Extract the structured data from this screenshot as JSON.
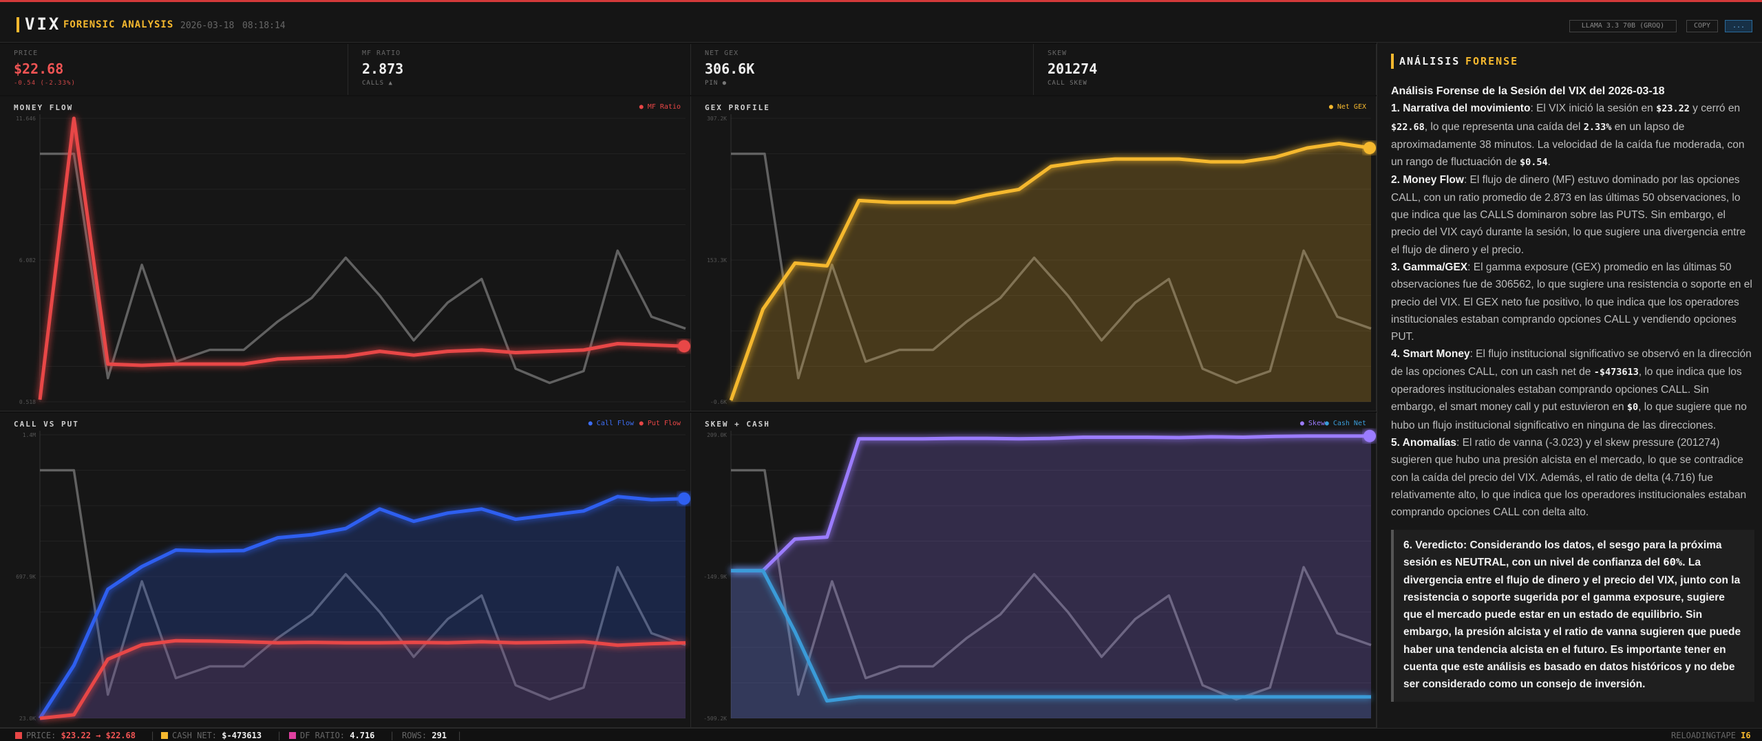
{
  "topbar": {
    "title": "VIX",
    "subtitle": "FORENSIC ANALYSIS",
    "date": "2026-03-18",
    "time": "08:18:14",
    "model_label": "LLAMA 3.3 70B (GROQ)",
    "copy_label": "COPY",
    "more_label": "...",
    "accent": "#d33a3a"
  },
  "stats": [
    {
      "label": "PRICE",
      "value": "$22.68",
      "sub": "-0.54 (-2.33%)"
    },
    {
      "label": "MF RATIO",
      "value": "2.873",
      "sub": "CALLS ▲"
    },
    {
      "label": "NET GEX",
      "value": "306.6K",
      "sub": "PIN ●"
    },
    {
      "label": "SKEW",
      "value": "201274",
      "sub": "CALL SKEW"
    }
  ],
  "panels": {
    "money_flow": {
      "title": "MONEY FLOW",
      "legend": [
        "● MF Ratio"
      ]
    },
    "gex_profile": {
      "title": "GEX PROFILE",
      "legend": [
        "● Net GEX"
      ]
    },
    "call_vs_put": {
      "title": "CALL VS PUT",
      "legend": [
        "● Call Flow",
        "● Put Flow"
      ]
    },
    "skew_cash": {
      "title": "SKEW + CASH",
      "legend": [
        "● Skew",
        "● Cash Net"
      ]
    }
  },
  "chart_data": [
    {
      "type": "line",
      "title": "MONEY FLOW",
      "y_ticks": [
        "11.646",
        "6.082",
        "0.518"
      ],
      "ylim": [
        0.518,
        11.646
      ],
      "series": [
        {
          "name": "MF Ratio",
          "color": "#e84646",
          "values": [
            0.6,
            11.646,
            2.0,
            1.95,
            2.0,
            2.0,
            2.0,
            2.2,
            2.25,
            2.3,
            2.5,
            2.35,
            2.5,
            2.55,
            2.45,
            2.5,
            2.55,
            2.8,
            2.75,
            2.7
          ]
        }
      ],
      "background_series": [
        10.5,
        10.5,
        1.0,
        5.8,
        1.7,
        2.2,
        2.2,
        3.4,
        4.4,
        6.1,
        4.5,
        2.6,
        4.2,
        5.2,
        1.4,
        0.8,
        1.3,
        6.4,
        3.6,
        3.1
      ]
    },
    {
      "type": "area",
      "title": "GEX PROFILE",
      "y_ticks": [
        "307.2K",
        "153.3K",
        "-0.6K"
      ],
      "ylim": [
        -0.6,
        307.2
      ],
      "series": [
        {
          "name": "Net GEX",
          "color": "#f5b82e",
          "values": [
            1,
            100,
            150,
            147,
            218,
            216,
            216,
            216,
            224,
            230,
            255,
            260,
            263,
            263,
            263,
            260,
            260,
            265,
            275,
            280,
            275
          ]
        }
      ],
      "background_series": [
        10.5,
        10.5,
        1.0,
        5.8,
        1.7,
        2.2,
        2.2,
        3.4,
        4.4,
        6.1,
        4.5,
        2.6,
        4.2,
        5.2,
        1.4,
        0.8,
        1.3,
        6.4,
        3.6,
        3.1
      ]
    },
    {
      "type": "area",
      "title": "CALL VS PUT",
      "y_ticks": [
        "1.4M",
        "697.9K",
        "23.0K"
      ],
      "ylim": [
        23.0,
        1400
      ],
      "series": [
        {
          "name": "Call Flow",
          "color": "#2e5ef0",
          "values": [
            23,
            280,
            650,
            760,
            840,
            835,
            838,
            900,
            915,
            945,
            1040,
            980,
            1020,
            1040,
            990,
            1010,
            1030,
            1100,
            1085,
            1090
          ]
        },
        {
          "name": "Put Flow",
          "color": "#e84646",
          "values": [
            23,
            40,
            310,
            380,
            400,
            398,
            395,
            390,
            392,
            390,
            390,
            392,
            390,
            395,
            390,
            392,
            395,
            378,
            385,
            390
          ]
        }
      ],
      "background_series": [
        10.5,
        10.5,
        1.0,
        5.8,
        1.7,
        2.2,
        2.2,
        3.4,
        4.4,
        6.1,
        4.5,
        2.6,
        4.2,
        5.2,
        1.4,
        0.8,
        1.3,
        6.4,
        3.6,
        3.1
      ]
    },
    {
      "type": "area",
      "title": "SKEW + CASH",
      "y_ticks": [
        "209.0K",
        "-149.9K",
        "-509.2K"
      ],
      "ylim": [
        -509.2,
        209.0
      ],
      "series": [
        {
          "name": "Skew",
          "color": "#9b7bff",
          "values": [
            -135,
            -135,
            -55,
            -50,
            199,
            199,
            199,
            200,
            200,
            199,
            200,
            203,
            203,
            203,
            202,
            204,
            203,
            205,
            206,
            206,
            206
          ]
        },
        {
          "name": "Cash Net",
          "color": "#3a9bd8",
          "values": [
            -135,
            -135,
            -290,
            -465,
            -455,
            -455,
            -455,
            -455,
            -455,
            -455,
            -455,
            -455,
            -455,
            -455,
            -455,
            -455,
            -455,
            -455,
            -455,
            -455,
            -455
          ]
        }
      ],
      "background_series": [
        10.5,
        10.5,
        1.0,
        5.8,
        1.7,
        2.2,
        2.2,
        3.4,
        4.4,
        6.1,
        4.5,
        2.6,
        4.2,
        5.2,
        1.4,
        0.8,
        1.3,
        6.4,
        3.6,
        3.1
      ]
    }
  ],
  "analysis": {
    "title_a": "ANÁLISIS",
    "title_b": "FORENSE",
    "heading": "Análisis Forense de la Sesión del VIX del 2026-03-18",
    "p1": {
      "lead": "1. Narrativa del movimiento",
      "t1": ": El VIX inició la sesión en ",
      "v1": "$23.22",
      "t2": " y cerró en ",
      "v2": "$22.68",
      "t3": ", lo que representa una caída del ",
      "v3": "2.33%",
      "t4": " en un lapso de aproximadamente 38 minutos. La velocidad de la caída fue moderada, con un rango de fluctuación de ",
      "v4": "$0.54",
      "t5": "."
    },
    "p2": {
      "lead": "2. Money Flow",
      "text": ": El flujo de dinero (MF) estuvo dominado por las opciones CALL, con un ratio promedio de 2.873 en las últimas 50 observaciones, lo que indica que las CALLS dominaron sobre las PUTS. Sin embargo, el precio del VIX cayó durante la sesión, lo que sugiere una divergencia entre el flujo de dinero y el precio."
    },
    "p3": {
      "lead": "3. Gamma/GEX",
      "text": ": El gamma exposure (GEX) promedio en las últimas 50 observaciones fue de 306562, lo que sugiere una resistencia o soporte en el precio del VIX. El GEX neto fue positivo, lo que indica que los operadores institucionales estaban comprando opciones CALL y vendiendo opciones PUT."
    },
    "p4": {
      "lead": "4. Smart Money",
      "t1": ": El flujo institucional significativo se observó en la dirección de las opciones CALL, con un cash net de ",
      "v1": "-$473613",
      "t2": ", lo que indica que los operadores institucionales estaban comprando opciones CALL. Sin embargo, el smart money call y put estuvieron en ",
      "v2": "$0",
      "t3": ", lo que sugiere que no hubo un flujo institucional significativo en ninguna de las direcciones."
    },
    "p5": {
      "lead": "5. Anomalías",
      "text": ": El ratio de vanna (-3.023) y el skew pressure (201274) sugieren que hubo una presión alcista en el mercado, lo que se contradice con la caída del precio del VIX. Además, el ratio de delta (4.716) fue relativamente alto, lo que indica que los operadores institucionales estaban comprando opciones CALL con delta alto."
    },
    "verdict": {
      "t1": "6. Veredicto: Considerando los datos, el sesgo para la próxima sesión es NEUTRAL, con un nivel de confianza del ",
      "v1": "60%",
      "t2": ". La divergencia entre el flujo de dinero y el precio del VIX, junto con la resistencia o soporte sugerida por el gamma exposure, sugiere que el mercado puede estar en un estado de equilibrio. Sin embargo, la presión alcista y el ratio de vanna sugieren que puede haber una tendencia alcista en el futuro. Es importante tener en cuenta que este análisis es basado en datos históricos y no debe ser considerado como un consejo de inversión."
    }
  },
  "statusbar": {
    "price_label": "PRICE:",
    "price_value": "$23.22 → $22.68",
    "cash_label": "CASH NET:",
    "cash_value": "$-473613",
    "df_label": "DF RATIO:",
    "df_value": "4.716",
    "rows_label": "ROWS:",
    "rows_value": "291",
    "right_label": "RELOADINGTAPE",
    "right_value": "I6"
  }
}
